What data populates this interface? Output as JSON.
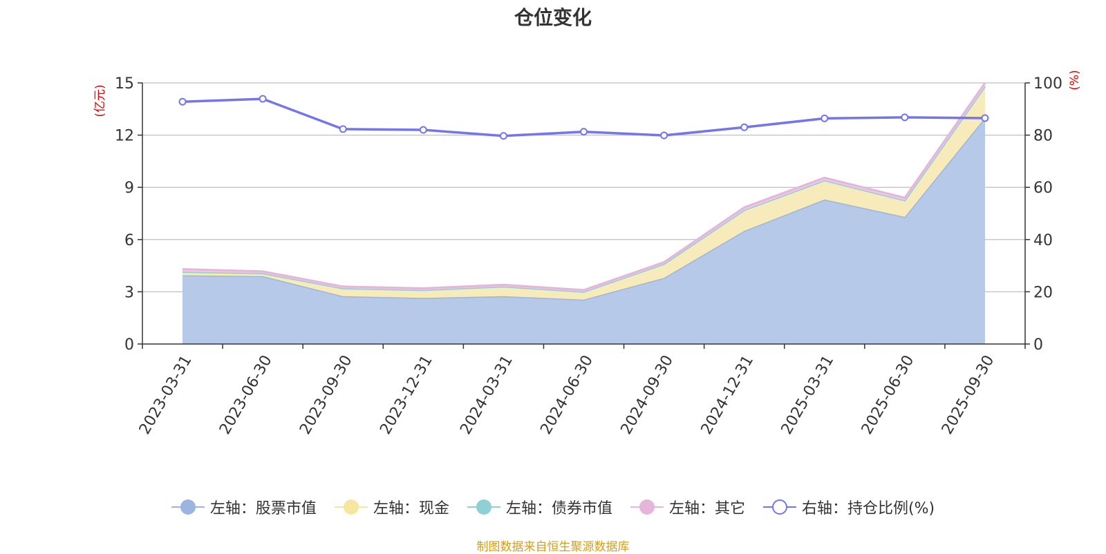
{
  "chart_data": {
    "type": "area",
    "title": "仓位变化",
    "source": "制图数据来自恒生聚源数据库",
    "left_axis_label": "(亿元)",
    "right_axis_label": "(%)",
    "x": [
      "2023-03-31",
      "2023-06-30",
      "2023-09-30",
      "2023-12-31",
      "2024-03-31",
      "2024-06-30",
      "2024-09-30",
      "2024-12-31",
      "2025-03-31",
      "2025-06-30",
      "2025-09-30"
    ],
    "left_ylim": [
      0,
      15
    ],
    "left_ticks": [
      0,
      3,
      6,
      9,
      12,
      15
    ],
    "right_ylim": [
      0,
      100
    ],
    "right_ticks": [
      0,
      20,
      40,
      60,
      80,
      100
    ],
    "grid": true,
    "legend_position": "bottom",
    "series": [
      {
        "name": "左轴：股票市值",
        "axis": "left",
        "stack": true,
        "color": "#9bb5e0",
        "fill": "#b6c9e8",
        "values": [
          3.95,
          3.9,
          2.75,
          2.65,
          2.75,
          2.55,
          3.8,
          6.5,
          8.3,
          7.3,
          13.0
        ]
      },
      {
        "name": "左轴：现金",
        "axis": "left",
        "stack": true,
        "color": "#f5e6a0",
        "fill": "#f7ebbc",
        "values": [
          0.15,
          0.12,
          0.45,
          0.45,
          0.55,
          0.45,
          0.8,
          1.2,
          1.1,
          0.95,
          1.8
        ]
      },
      {
        "name": "左轴：债券市值",
        "axis": "left",
        "stack": true,
        "color": "#8fd0d4",
        "fill": "#a8dadc",
        "values": [
          0.05,
          0.05,
          0.0,
          0.0,
          0.0,
          0.0,
          0.0,
          0.0,
          0.0,
          0.0,
          0.0
        ]
      },
      {
        "name": "左轴：其它",
        "axis": "left",
        "stack": true,
        "color": "#e6b5da",
        "fill": "#efc9e6",
        "values": [
          0.15,
          0.1,
          0.1,
          0.1,
          0.1,
          0.1,
          0.1,
          0.15,
          0.15,
          0.15,
          0.2
        ]
      },
      {
        "name": "右轴：持仓比例(%)",
        "axis": "right",
        "type": "line",
        "color": "#7474ec",
        "values": [
          92.8,
          93.9,
          82.3,
          82.0,
          79.7,
          81.3,
          79.9,
          83.0,
          86.4,
          86.8,
          86.5
        ]
      }
    ]
  }
}
